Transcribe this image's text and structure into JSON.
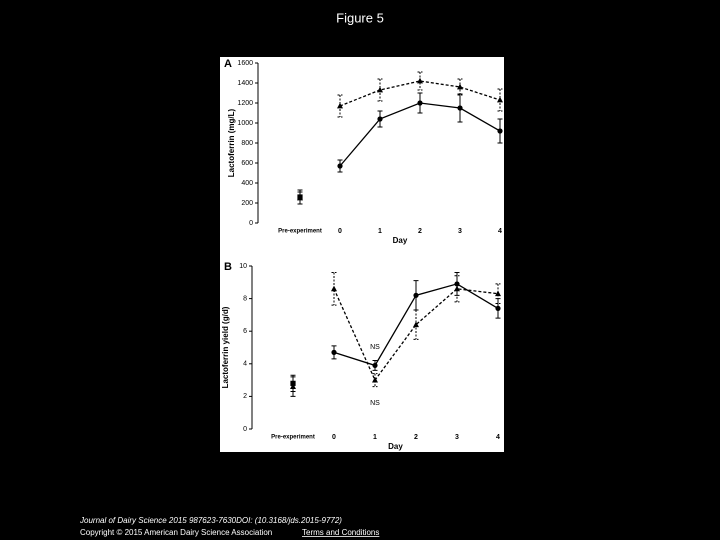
{
  "title": "Figure 5",
  "footer": {
    "citation": "Journal of Dairy Science 2015 987623-7630DOI: (10.3168/jds.2015-9772)",
    "copyright": "Copyright © 2015 American Dairy Science Association",
    "link": "Terms and Conditions"
  },
  "chart_data": [
    {
      "type": "line",
      "panel": "A",
      "ylabel": "Lactoferrin (mg/L)",
      "xlabel": "Day",
      "categories": [
        "Pre-experiment",
        "0",
        "1",
        "2",
        "3",
        "4"
      ],
      "ylim": [
        0,
        1600
      ],
      "yticks": [
        0,
        200,
        400,
        600,
        800,
        1000,
        1200,
        1400,
        1600
      ],
      "series": [
        {
          "color": "#000000",
          "style": "solid",
          "marker": "circle",
          "values": [
            null,
            570,
            1040,
            1200,
            1150,
            920
          ],
          "errors": [
            null,
            60,
            80,
            100,
            140,
            120
          ]
        },
        {
          "color": "#000000",
          "style": "dashed",
          "marker": "triangle",
          "values": [
            null,
            1170,
            1330,
            1420,
            1360,
            1230
          ],
          "errors": [
            null,
            110,
            110,
            90,
            80,
            110
          ]
        },
        {
          "color": "#000000",
          "style": "none",
          "marker": "square",
          "values": [
            260,
            null,
            null,
            null,
            null,
            null
          ],
          "errors": [
            70,
            null,
            null,
            null,
            null,
            null
          ]
        },
        {
          "color": "#000000",
          "style": "none",
          "marker": "triangle",
          "values": [
            250,
            null,
            null,
            null,
            null,
            null
          ],
          "errors": [
            60,
            null,
            null,
            null,
            null,
            null
          ]
        }
      ]
    },
    {
      "type": "line",
      "panel": "B",
      "ylabel": "Lactoferrin yield (g/d)",
      "xlabel": "Day",
      "categories": [
        "Pre-experiment",
        "0",
        "1",
        "2",
        "3",
        "4"
      ],
      "ylim": [
        0,
        10
      ],
      "yticks": [
        0,
        2,
        4,
        6,
        8,
        10
      ],
      "annotations": [
        "NS",
        "NS"
      ],
      "series": [
        {
          "color": "#000000",
          "style": "solid",
          "marker": "circle",
          "values": [
            null,
            4.7,
            3.9,
            8.2,
            8.9,
            7.4
          ],
          "errors": [
            null,
            0.4,
            0.3,
            0.9,
            0.7,
            0.6
          ]
        },
        {
          "color": "#000000",
          "style": "dashed",
          "marker": "triangle",
          "values": [
            null,
            8.6,
            3.0,
            6.4,
            8.6,
            8.3
          ],
          "errors": [
            null,
            1.0,
            0.4,
            0.9,
            0.8,
            0.6
          ]
        },
        {
          "color": "#000000",
          "style": "none",
          "marker": "square",
          "values": [
            2.8,
            null,
            null,
            null,
            null,
            null
          ],
          "errors": [
            0.5,
            null,
            null,
            null,
            null,
            null
          ]
        },
        {
          "color": "#000000",
          "style": "none",
          "marker": "triangle",
          "values": [
            2.6,
            null,
            null,
            null,
            null,
            null
          ],
          "errors": [
            0.6,
            null,
            null,
            null,
            null,
            null
          ]
        }
      ]
    }
  ]
}
